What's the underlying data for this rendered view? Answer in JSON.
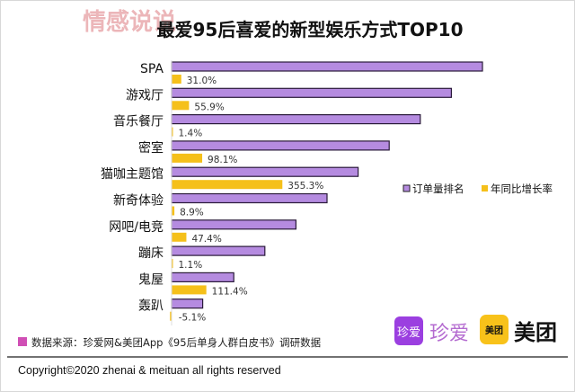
{
  "watermark": "情感说说",
  "chart_data": {
    "type": "bar",
    "orientation": "horizontal",
    "title": "最爱95后喜爱的新型娱乐方式TOP10",
    "categories": [
      "SPA",
      "游戏厅",
      "音乐餐厅",
      "密室",
      "猫咖主题馆",
      "新奇体验",
      "网吧/电竞",
      "蹦床",
      "鬼屋",
      "轰趴"
    ],
    "series": [
      {
        "name": "订单量排名",
        "values": [
          1,
          2,
          3,
          4,
          5,
          6,
          7,
          8,
          9,
          10
        ],
        "color": "#b58be0"
      },
      {
        "name": "年同比增长率",
        "values": [
          31.0,
          55.9,
          1.4,
          98.1,
          355.3,
          8.9,
          47.4,
          1.1,
          111.4,
          -5.1
        ],
        "labels": [
          "31.0%",
          "55.9%",
          "1.4%",
          "98.1%",
          "355.3%",
          "8.9%",
          "47.4%",
          "1.1%",
          "111.4%",
          "-5.1%"
        ],
        "color": "#f5c01a"
      }
    ],
    "legend_position": "right",
    "grid": false
  },
  "source": "数据来源：珍爱网&美团App《95后单身人群白皮书》调研数据",
  "source_marker_color": "#d04fb5",
  "logos": {
    "zhenai_icon": "珍爱",
    "zhenai_text": "珍爱",
    "meituan_icon": "美团",
    "meituan_text": "美团"
  },
  "copyright": "Copyright©2020 zhenai & meituan all rights reserved"
}
